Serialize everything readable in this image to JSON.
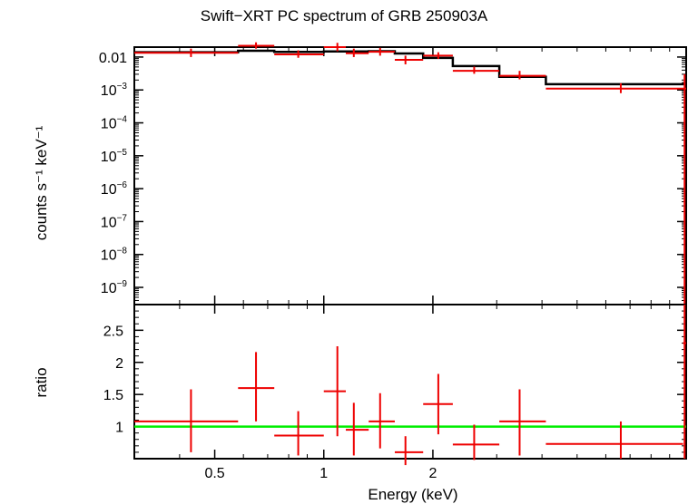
{
  "title": "Swift−XRT PC spectrum of GRB 250903A",
  "xlabel": "Energy (keV)",
  "ylabel_top": "counts s⁻¹ keV⁻¹",
  "ylabel_bottom": "ratio",
  "colors": {
    "data": "#ee0000",
    "model": "#000000",
    "unity": "#00ee00"
  },
  "chart_data": [
    {
      "type": "scatter",
      "panel": "spectrum",
      "xscale": "log",
      "yscale": "log",
      "xlim": [
        0.3,
        10
      ],
      "ylim": [
        3e-10,
        0.02
      ],
      "xticks": [
        0.5,
        1,
        2
      ],
      "xticklabels": [
        "0.5",
        "1",
        "2"
      ],
      "yticks": [
        1e-09,
        1e-08,
        1e-07,
        1e-06,
        1e-05,
        0.0001,
        0.001,
        0.01
      ],
      "yticklabels": [
        {
          "base": "10",
          "exp": "−9"
        },
        {
          "base": "10",
          "exp": "−8"
        },
        {
          "base": "10",
          "exp": "−7"
        },
        {
          "base": "10",
          "exp": "−6"
        },
        {
          "base": "10",
          "exp": "−5"
        },
        {
          "base": "10",
          "exp": "−4"
        },
        {
          "base": "10",
          "exp": "−3"
        },
        {
          "base": "0.01",
          "exp": ""
        }
      ],
      "data_points": [
        {
          "x": 0.43,
          "xerr": [
            0.3,
            0.58
          ],
          "y": 0.0135,
          "yerr": [
            0.01,
            0.018
          ]
        },
        {
          "x": 0.65,
          "xerr": [
            0.58,
            0.73
          ],
          "y": 0.022,
          "yerr": [
            0.018,
            0.028
          ]
        },
        {
          "x": 0.85,
          "xerr": [
            0.73,
            1.0
          ],
          "y": 0.012,
          "yerr": [
            0.0095,
            0.016
          ]
        },
        {
          "x": 1.09,
          "xerr": [
            1.0,
            1.15
          ],
          "y": 0.02,
          "yerr": [
            0.015,
            0.027
          ]
        },
        {
          "x": 1.21,
          "xerr": [
            1.15,
            1.33
          ],
          "y": 0.013,
          "yerr": [
            0.01,
            0.018
          ]
        },
        {
          "x": 1.43,
          "xerr": [
            1.33,
            1.57
          ],
          "y": 0.0145,
          "yerr": [
            0.011,
            0.019
          ]
        },
        {
          "x": 1.68,
          "xerr": [
            1.57,
            1.88
          ],
          "y": 0.0082,
          "yerr": [
            0.006,
            0.011
          ]
        },
        {
          "x": 2.07,
          "xerr": [
            1.88,
            2.27
          ],
          "y": 0.011,
          "yerr": [
            0.0088,
            0.014
          ]
        },
        {
          "x": 2.6,
          "xerr": [
            2.27,
            3.05
          ],
          "y": 0.0038,
          "yerr": [
            0.0031,
            0.0051
          ]
        },
        {
          "x": 3.47,
          "xerr": [
            3.05,
            4.1
          ],
          "y": 0.0027,
          "yerr": [
            0.0021,
            0.0038
          ]
        },
        {
          "x": 6.6,
          "xerr": [
            4.1,
            9.8
          ],
          "y": 0.0011,
          "yerr": [
            0.0008,
            0.0016
          ]
        },
        {
          "x": 9.9,
          "xerr": [
            9.8,
            10.0
          ],
          "y": 0.0011,
          "yerr": [
            3e-10,
            0.003
          ]
        }
      ],
      "model_steps": [
        {
          "x0": 0.3,
          "x1": 0.58,
          "y": 0.014
        },
        {
          "x0": 0.58,
          "x1": 0.73,
          "y": 0.0155
        },
        {
          "x0": 0.73,
          "x1": 1.0,
          "y": 0.0143
        },
        {
          "x0": 1.0,
          "x1": 1.33,
          "y": 0.0148
        },
        {
          "x0": 1.33,
          "x1": 1.57,
          "y": 0.015
        },
        {
          "x0": 1.57,
          "x1": 1.88,
          "y": 0.0128
        },
        {
          "x0": 1.88,
          "x1": 2.27,
          "y": 0.0094
        },
        {
          "x0": 2.27,
          "x1": 3.05,
          "y": 0.0053
        },
        {
          "x0": 3.05,
          "x1": 4.1,
          "y": 0.0025
        },
        {
          "x0": 4.1,
          "x1": 9.8,
          "y": 0.0015
        },
        {
          "x0": 9.8,
          "x1": 10.0,
          "y": 0.0016
        }
      ]
    },
    {
      "type": "scatter",
      "panel": "ratio",
      "xscale": "log",
      "yscale": "linear",
      "xlim": [
        0.3,
        10
      ],
      "ylim": [
        0.5,
        2.9
      ],
      "xticks": [
        0.5,
        1,
        2
      ],
      "xticklabels": [
        "0.5",
        "1",
        "2"
      ],
      "yticks": [
        1,
        1.5,
        2,
        2.5
      ],
      "yticklabels": [
        "1",
        "1.5",
        "2",
        "2.5"
      ],
      "reference_line": 1,
      "data_points": [
        {
          "x": 0.43,
          "xerr": [
            0.3,
            0.58
          ],
          "y": 1.08,
          "yerr": [
            0.6,
            1.58
          ]
        },
        {
          "x": 0.65,
          "xerr": [
            0.58,
            0.73
          ],
          "y": 1.6,
          "yerr": [
            1.08,
            2.16
          ]
        },
        {
          "x": 0.85,
          "xerr": [
            0.73,
            1.0
          ],
          "y": 0.86,
          "yerr": [
            0.55,
            1.24
          ]
        },
        {
          "x": 1.09,
          "xerr": [
            1.0,
            1.15
          ],
          "y": 1.55,
          "yerr": [
            0.85,
            2.25
          ]
        },
        {
          "x": 1.21,
          "xerr": [
            1.15,
            1.33
          ],
          "y": 0.95,
          "yerr": [
            0.55,
            1.37
          ]
        },
        {
          "x": 1.43,
          "xerr": [
            1.33,
            1.57
          ],
          "y": 1.08,
          "yerr": [
            0.66,
            1.52
          ]
        },
        {
          "x": 1.68,
          "xerr": [
            1.57,
            1.88
          ],
          "y": 0.6,
          "yerr": [
            0.4,
            0.85
          ]
        },
        {
          "x": 2.07,
          "xerr": [
            1.88,
            2.27
          ],
          "y": 1.35,
          "yerr": [
            0.88,
            1.82
          ]
        },
        {
          "x": 2.6,
          "xerr": [
            2.27,
            3.05
          ],
          "y": 0.72,
          "yerr": [
            0.48,
            1.03
          ]
        },
        {
          "x": 3.47,
          "xerr": [
            3.05,
            4.1
          ],
          "y": 1.08,
          "yerr": [
            0.55,
            1.58
          ]
        },
        {
          "x": 6.6,
          "xerr": [
            4.1,
            9.8
          ],
          "y": 0.73,
          "yerr": [
            0.5,
            1.08
          ]
        },
        {
          "x": 9.9,
          "xerr": [
            9.8,
            10.0
          ],
          "y": 2.3,
          "yerr": [
            0.5,
            2.9
          ]
        }
      ]
    }
  ]
}
